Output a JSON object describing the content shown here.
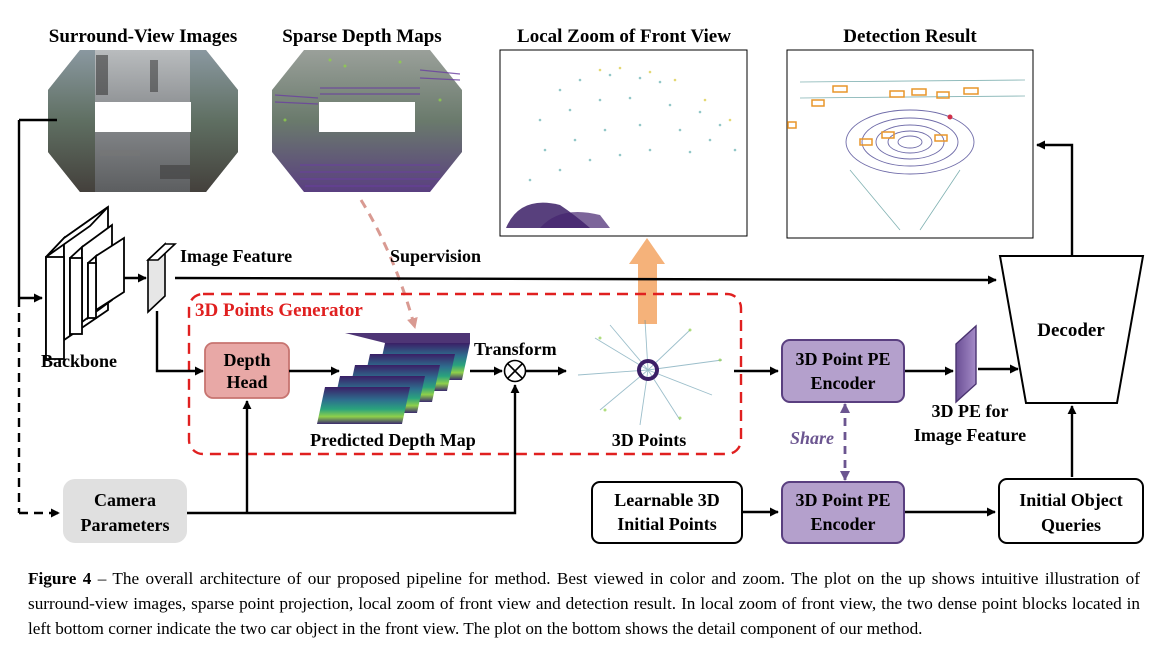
{
  "figure": {
    "panels": {
      "surround": "Surround-View Images",
      "sparse": "Sparse Depth Maps",
      "zoom": "Local Zoom of Front View",
      "detection": "Detection Result"
    },
    "labels": {
      "image_feature": "Image Feature",
      "supervision": "Supervision",
      "backbone": "Backbone",
      "generator": "3D Points Generator",
      "depth_head_1": "Depth",
      "depth_head_2": "Head",
      "transform": "Transform",
      "predicted_depth": "Predicted Depth Map",
      "points_3d": "3D Points",
      "pe_encoder_1": "3D Point PE",
      "pe_encoder_2": "Encoder",
      "pe_feature_1": "3D PE for",
      "pe_feature_2": "Image Feature",
      "share": "Share",
      "decoder": "Decoder",
      "camera_1": "Camera",
      "camera_2": "Parameters",
      "learnable_1": "Learnable 3D",
      "learnable_2": "Initial Points",
      "queries_1": "Initial Object",
      "queries_2": "Queries"
    },
    "colors": {
      "generator_border": "#e02020",
      "depth_head_fill": "#e8a8a6",
      "encoder_fill": "#b4a0cc",
      "encoder_border": "#5a3f80",
      "orange_arrow": "#f5b27a",
      "camera_fill": "#e0e0e0"
    }
  },
  "caption": {
    "label": "Figure 4",
    "text": " – The overall architecture of our proposed pipeline for method.  Best viewed in color and zoom.  The plot on the up shows intuitive illustration of surround-view images, sparse point projection, local zoom of front view and detection result. In local zoom of front view, the two dense point blocks located in left bottom corner indicate the two car object in the front view. The plot on the bottom shows the detail component of our method."
  }
}
